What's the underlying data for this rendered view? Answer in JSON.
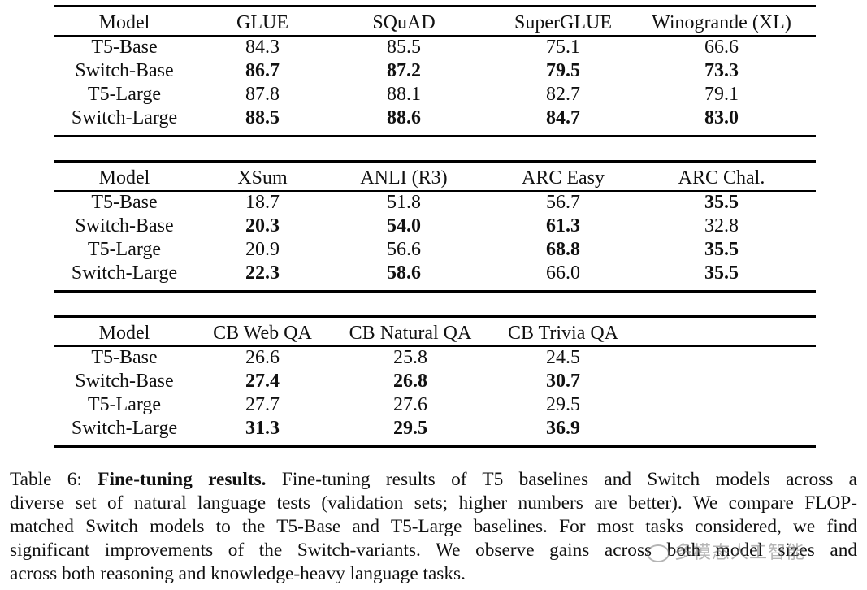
{
  "tables": [
    {
      "headers": [
        "Model",
        "GLUE",
        "SQuAD",
        "SuperGLUE",
        "Winogrande (XL)"
      ],
      "rows": [
        {
          "model": "T5-Base",
          "cells": [
            {
              "v": "84.3",
              "b": false
            },
            {
              "v": "85.5",
              "b": false
            },
            {
              "v": "75.1",
              "b": false
            },
            {
              "v": "66.6",
              "b": false
            }
          ]
        },
        {
          "model": "Switch-Base",
          "cells": [
            {
              "v": "86.7",
              "b": true
            },
            {
              "v": "87.2",
              "b": true
            },
            {
              "v": "79.5",
              "b": true
            },
            {
              "v": "73.3",
              "b": true
            }
          ]
        },
        {
          "model": "T5-Large",
          "cells": [
            {
              "v": "87.8",
              "b": false
            },
            {
              "v": "88.1",
              "b": false
            },
            {
              "v": "82.7",
              "b": false
            },
            {
              "v": "79.1",
              "b": false
            }
          ]
        },
        {
          "model": "Switch-Large",
          "cells": [
            {
              "v": "88.5",
              "b": true
            },
            {
              "v": "88.6",
              "b": true
            },
            {
              "v": "84.7",
              "b": true
            },
            {
              "v": "83.0",
              "b": true
            }
          ]
        }
      ]
    },
    {
      "headers": [
        "Model",
        "XSum",
        "ANLI (R3)",
        "ARC Easy",
        "ARC Chal."
      ],
      "rows": [
        {
          "model": "T5-Base",
          "cells": [
            {
              "v": "18.7",
              "b": false
            },
            {
              "v": "51.8",
              "b": false
            },
            {
              "v": "56.7",
              "b": false
            },
            {
              "v": "35.5",
              "b": true
            }
          ]
        },
        {
          "model": "Switch-Base",
          "cells": [
            {
              "v": "20.3",
              "b": true
            },
            {
              "v": "54.0",
              "b": true
            },
            {
              "v": "61.3",
              "b": true
            },
            {
              "v": "32.8",
              "b": false
            }
          ]
        },
        {
          "model": "T5-Large",
          "cells": [
            {
              "v": "20.9",
              "b": false
            },
            {
              "v": "56.6",
              "b": false
            },
            {
              "v": "68.8",
              "b": true
            },
            {
              "v": "35.5",
              "b": true
            }
          ]
        },
        {
          "model": "Switch-Large",
          "cells": [
            {
              "v": "22.3",
              "b": true
            },
            {
              "v": "58.6",
              "b": true
            },
            {
              "v": "66.0",
              "b": false
            },
            {
              "v": "35.5",
              "b": true
            }
          ]
        }
      ]
    },
    {
      "headers": [
        "Model",
        "CB Web QA",
        "CB Natural QA",
        "CB Trivia QA"
      ],
      "rows": [
        {
          "model": "T5-Base",
          "cells": [
            {
              "v": "26.6",
              "b": false
            },
            {
              "v": "25.8",
              "b": false
            },
            {
              "v": "24.5",
              "b": false
            }
          ]
        },
        {
          "model": "Switch-Base",
          "cells": [
            {
              "v": "27.4",
              "b": true
            },
            {
              "v": "26.8",
              "b": true
            },
            {
              "v": "30.7",
              "b": true
            }
          ]
        },
        {
          "model": "T5-Large",
          "cells": [
            {
              "v": "27.7",
              "b": false
            },
            {
              "v": "27.6",
              "b": false
            },
            {
              "v": "29.5",
              "b": false
            }
          ]
        },
        {
          "model": "Switch-Large",
          "cells": [
            {
              "v": "31.3",
              "b": true
            },
            {
              "v": "29.5",
              "b": true
            },
            {
              "v": "36.9",
              "b": true
            }
          ]
        }
      ]
    }
  ],
  "caption": {
    "label": "Table 6:",
    "title": "Fine-tuning results.",
    "lines": [
      "Fine-tuning results of T5 baselines and Switch models across a",
      "diverse set of natural language tests (validation sets; higher numbers are better). We compare FLOP-",
      "matched Switch models to the T5-Base and T5-Large baselines. For most tasks considered, we find",
      "significant improvements of the Switch-variants. We observe gains across both model sizes and",
      "across both reasoning and knowledge-heavy language tasks."
    ]
  },
  "watermark": {
    "text": "多模态人工智能"
  }
}
